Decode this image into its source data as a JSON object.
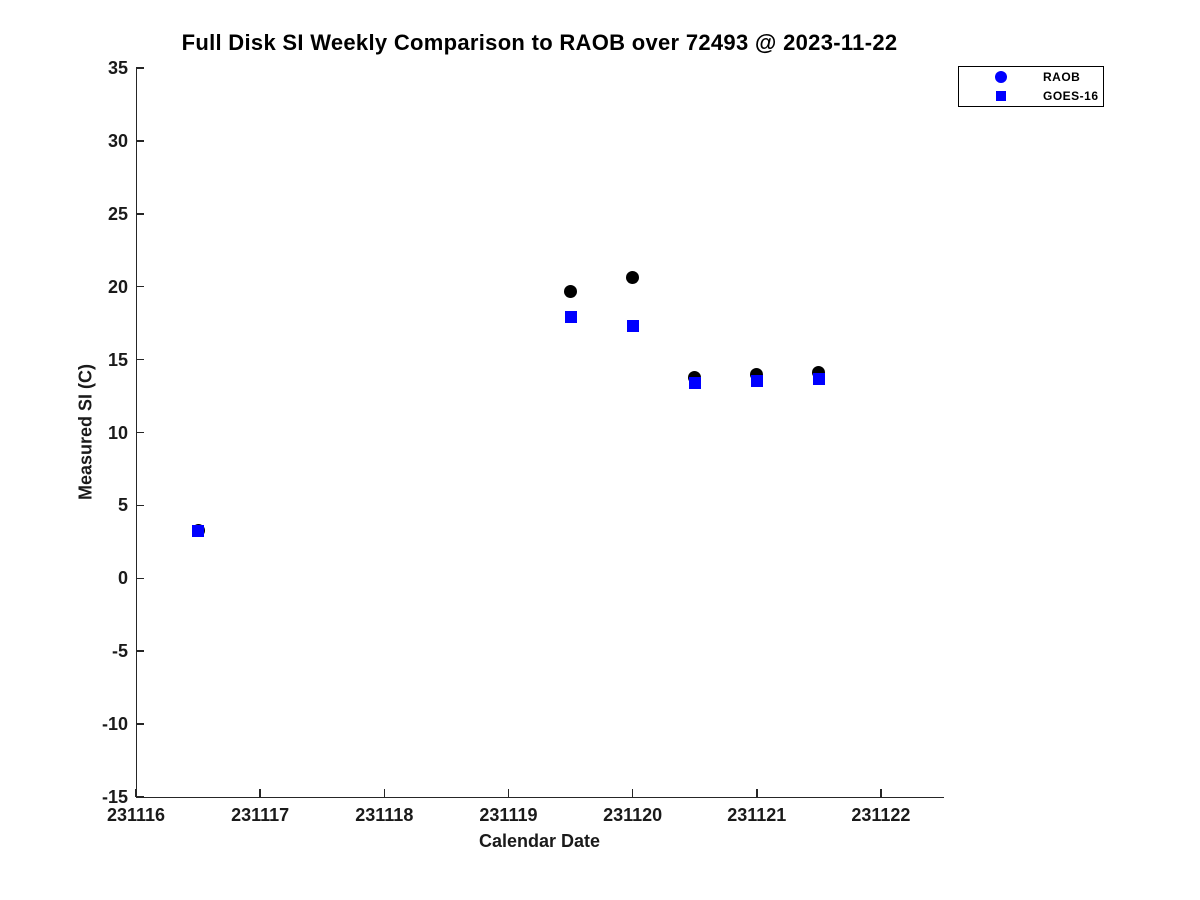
{
  "figure": {
    "background": "#ffffff",
    "axis_color": "#262626",
    "text_color": "#1a1a1a",
    "title_color": "#000000"
  },
  "chart_data": {
    "type": "scatter",
    "title": "Full Disk SI Weekly Comparison to RAOB over 72493 @ 2023-11-22",
    "xlabel": "Calendar Date",
    "ylabel": "Measured SI (C)",
    "xlim": [
      231116,
      231122.5
    ],
    "ylim": [
      -15,
      35
    ],
    "x_ticks": [
      231116,
      231117,
      231118,
      231119,
      231120,
      231121,
      231122
    ],
    "y_ticks": [
      35,
      30,
      25,
      20,
      15,
      10,
      5,
      0,
      -5,
      -10,
      -15
    ],
    "grid": false,
    "legend": {
      "position": "top-right",
      "entries": [
        {
          "label": "RAOB",
          "marker": "circle",
          "color": "#0000ff"
        },
        {
          "label": "GOES-16",
          "marker": "square",
          "color": "#0000ff"
        }
      ]
    },
    "series": [
      {
        "name": "RAOB",
        "marker": "circle",
        "marker_color": "#000000",
        "marker_size": 13,
        "x": [
          231116.5,
          231119.5,
          231120.0,
          231120.5,
          231121.0,
          231121.5
        ],
        "y": [
          3.3,
          19.7,
          20.6,
          13.8,
          14.0,
          14.1
        ]
      },
      {
        "name": "GOES-16",
        "marker": "square",
        "marker_color": "#0000ff",
        "marker_size": 12,
        "x": [
          231116.5,
          231119.5,
          231120.0,
          231120.5,
          231121.0,
          231121.5
        ],
        "y": [
          3.25,
          17.9,
          17.3,
          13.4,
          13.55,
          13.7
        ]
      }
    ]
  }
}
